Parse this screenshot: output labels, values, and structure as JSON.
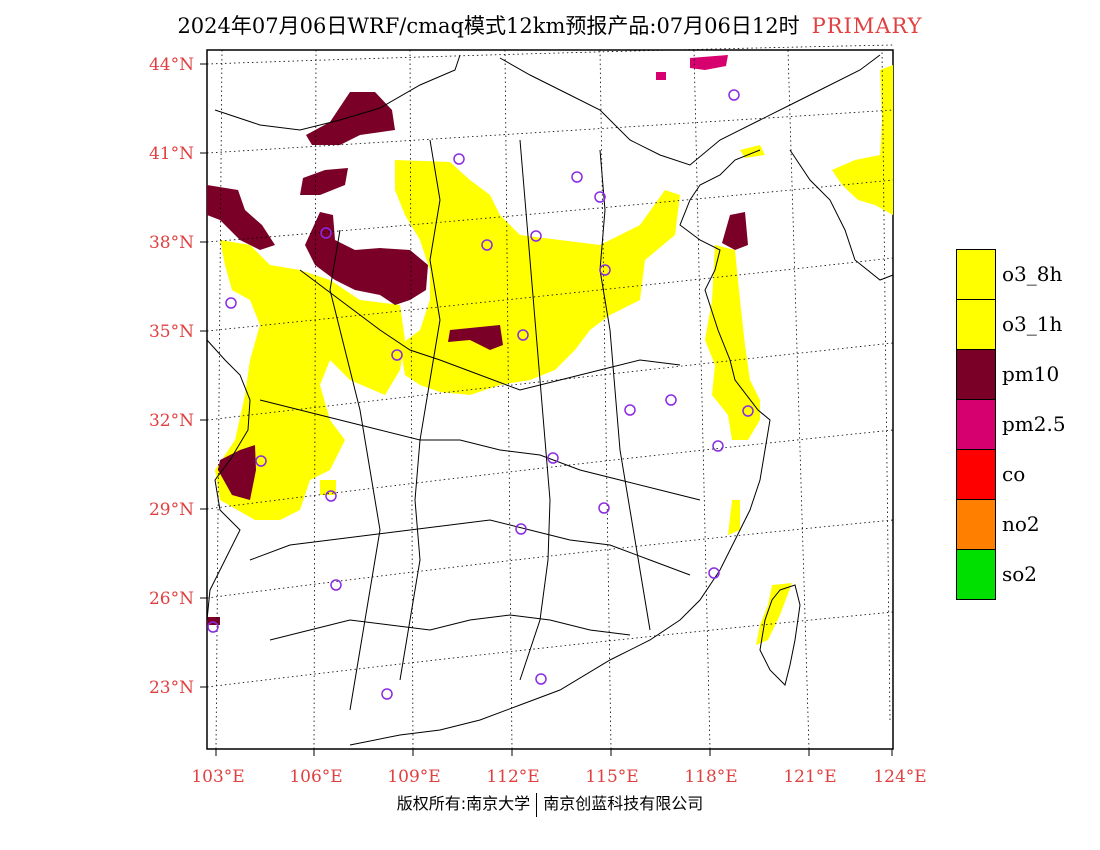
{
  "title": {
    "main": "2024年07月06日WRF/cmaq模式12km预报产品:07月06日12时",
    "pollutant_mode": "PRIMARY"
  },
  "map": {
    "lat_labels": [
      "44°N",
      "41°N",
      "38°N",
      "35°N",
      "32°N",
      "29°N",
      "26°N",
      "23°N"
    ],
    "lon_labels": [
      "103°E",
      "106°E",
      "109°E",
      "112°E",
      "115°E",
      "118°E",
      "121°E",
      "124°E"
    ],
    "station_marker_color": "#8a2be2",
    "boundary_color": "#000000"
  },
  "legend": {
    "items": [
      {
        "label": "o3_8h",
        "color": "#ffff00"
      },
      {
        "label": "o3_1h",
        "color": "#ffff00"
      },
      {
        "label": "pm10",
        "color": "#7a0028"
      },
      {
        "label": "pm2.5",
        "color": "#d6006e"
      },
      {
        "label": "co",
        "color": "#ff0000"
      },
      {
        "label": "no2",
        "color": "#ff8000"
      },
      {
        "label": "so2",
        "color": "#00e000"
      }
    ]
  },
  "footer": {
    "copyright": "版权所有:南京大学",
    "company": "南京创蓝科技有限公司"
  }
}
